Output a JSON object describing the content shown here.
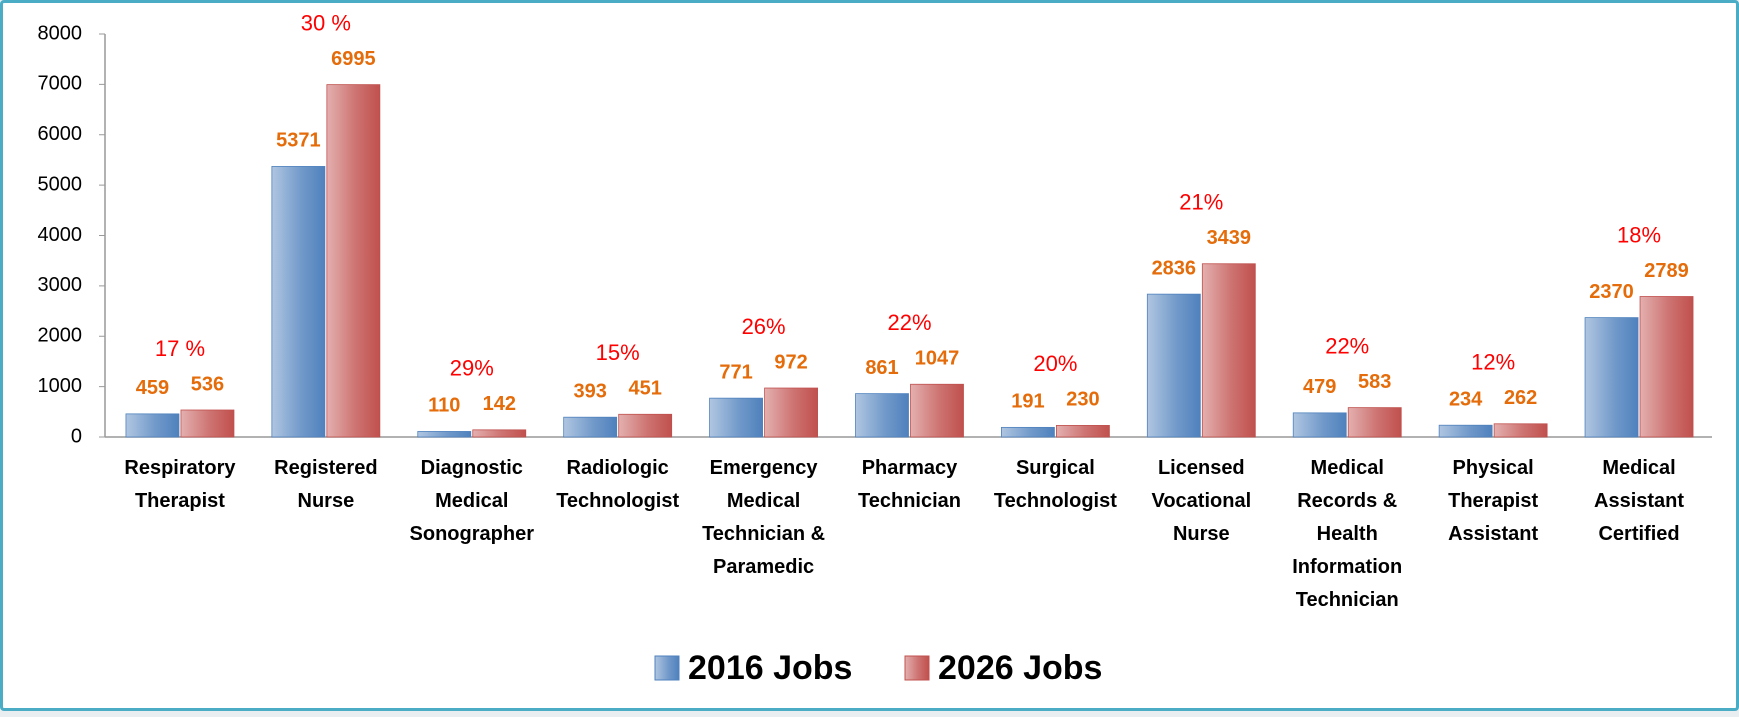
{
  "chart_data": {
    "type": "bar",
    "categories": [
      "Respiratory Therapist",
      "Registered Nurse",
      "Diagnostic Medical Sonographer",
      "Radiologic Technologist",
      "Emergency Medical Technician & Paramedic",
      "Pharmacy Technician",
      "Surgical Technologist",
      "Licensed Vocational Nurse",
      "Medical Records & Health Information Technician",
      "Physical Therapist Assistant",
      "Medical Assistant Certified"
    ],
    "series": [
      {
        "name": "2016 Jobs",
        "color": "#4f81bd",
        "values": [
          459,
          5371,
          110,
          393,
          771,
          861,
          191,
          2836,
          479,
          234,
          2370
        ]
      },
      {
        "name": "2026 Jobs",
        "color": "#c0504d",
        "values": [
          536,
          6995,
          142,
          451,
          972,
          1047,
          230,
          3439,
          583,
          262,
          2789
        ]
      }
    ],
    "annotations": [
      "17 %",
      "30 %",
      "29%",
      "15%",
      "26%",
      "22%",
      "20%",
      "21%",
      "22%",
      "12%",
      "18%"
    ],
    "ylim": [
      0,
      8000
    ],
    "yticks": [
      0,
      1000,
      2000,
      3000,
      4000,
      5000,
      6000,
      7000,
      8000
    ],
    "grid": false,
    "legend": "bottom"
  }
}
